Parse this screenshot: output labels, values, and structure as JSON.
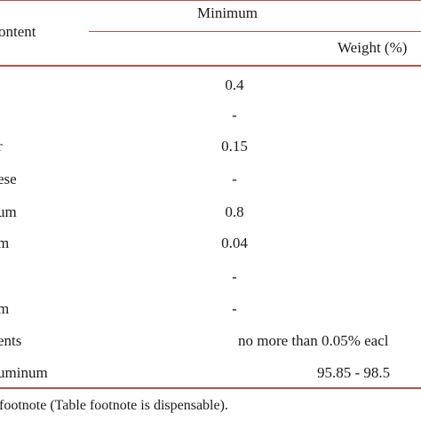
{
  "table": {
    "header": {
      "content_label": "ontent",
      "minimum_label": "Minimum",
      "weight_label": "Weight (%)"
    },
    "rows": [
      {
        "element": "",
        "value": "0.4"
      },
      {
        "element": "",
        "value": "-"
      },
      {
        "element": "r",
        "value": "0.15"
      },
      {
        "element": "ese",
        "value": "-"
      },
      {
        "element": "um",
        "value": "0.8"
      },
      {
        "element": "m",
        "value": "0.04"
      },
      {
        "element": "",
        "value": "-"
      },
      {
        "element": "m",
        "value": "-"
      },
      {
        "element": "ents",
        "value": "no more than 0.05% eacl"
      },
      {
        "element": "uminum",
        "value": "95.85 - 98.5"
      }
    ],
    "footnote": "footnote (Table footnote is dispensable).",
    "rule_color": "#b5524a"
  }
}
